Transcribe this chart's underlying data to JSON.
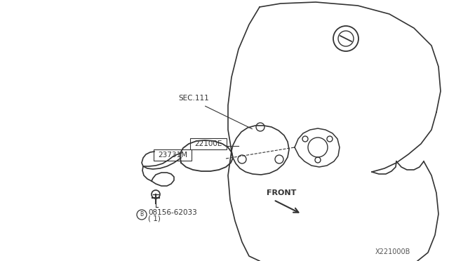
{
  "bg_color": "#ffffff",
  "line_color": "#333333",
  "text_color": "#333333",
  "title_ref": "X221000B",
  "labels": {
    "sec111": "SEC.111",
    "part22100E": "22100E",
    "part23731M": "23731M",
    "bolt": "°08156-62033\n( 1)",
    "front": "FRONT"
  },
  "figsize": [
    6.4,
    3.72
  ],
  "dpi": 100
}
